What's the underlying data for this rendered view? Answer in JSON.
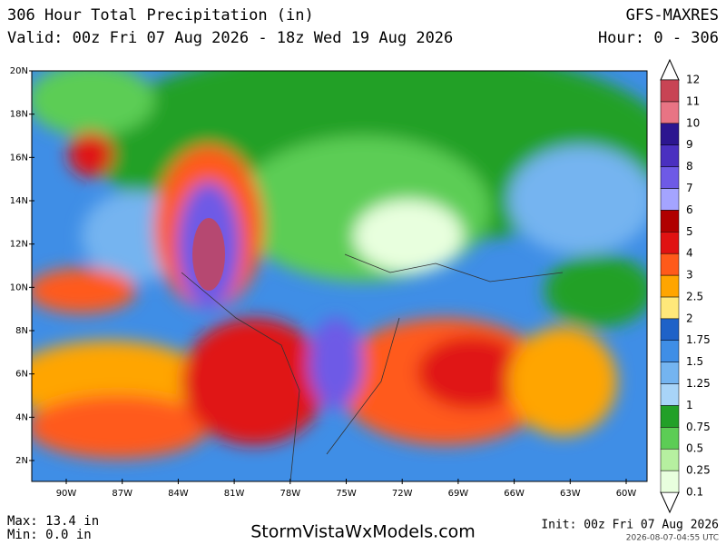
{
  "header": {
    "title": "306 Hour Total Precipitation (in)",
    "valid": "Valid: 00z Fri 07 Aug 2026 - 18z Wed 19 Aug 2026",
    "model": "GFS-MAXRES",
    "hour": "Hour: 0 - 306"
  },
  "map": {
    "lat_labels": [
      "20N",
      "18N",
      "16N",
      "14N",
      "12N",
      "10N",
      "8N",
      "6N",
      "4N",
      "2N"
    ],
    "lon_labels": [
      "90W",
      "87W",
      "84W",
      "81W",
      "78W",
      "75W",
      "72W",
      "69W",
      "66W",
      "63W",
      "60W"
    ]
  },
  "colorbar": {
    "levels": [
      0.1,
      0.25,
      0.5,
      0.75,
      1,
      1.25,
      1.5,
      1.75,
      2,
      2.5,
      3,
      4,
      5,
      6,
      7,
      8,
      9,
      10,
      11,
      12
    ],
    "colors": [
      "#e8ffde",
      "#b6f0a0",
      "#5ccd55",
      "#22a028",
      "#a8d4f8",
      "#74b4f0",
      "#3f8ee6",
      "#1f62c8",
      "#ffe87a",
      "#ffa500",
      "#ff5a1a",
      "#e01212",
      "#b00000",
      "#a4a4ff",
      "#6e5ae6",
      "#4a30c0",
      "#2c1690",
      "#e87484",
      "#c84454"
    ]
  },
  "footer": {
    "max": "Max: 13.4 in",
    "min": "Min: 0.0 in",
    "site": "StormVistaWxModels.com",
    "init": "Init: 00z Fri 07 Aug 2026",
    "timestamp": "2026-08-07-04:55 UTC"
  }
}
